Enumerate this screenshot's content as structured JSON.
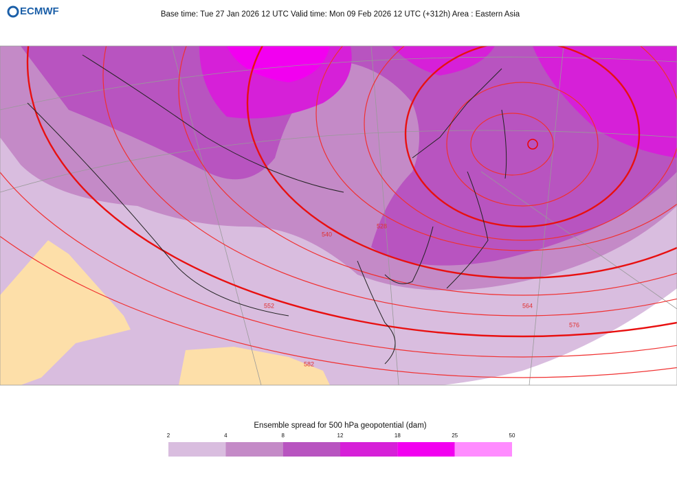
{
  "header": {
    "logo": "ECMWF",
    "title": "Base time: Tue 27 Jan 2026 12 UTC Valid time: Mon 09 Feb 2026 12 UTC (+312h) Area : Eastern Asia"
  },
  "map": {
    "contour_labels": [
      "528",
      "540",
      "552",
      "564",
      "576",
      "582"
    ]
  },
  "colorbar": {
    "title": "Ensemble spread for 500 hPa geopotential (dam)",
    "ticks": [
      2,
      4,
      8,
      12,
      18,
      25,
      50
    ],
    "colors": [
      "#d9bddf",
      "#c48ac7",
      "#b854c0",
      "#d620d8",
      "#f200f0",
      "#ff8cff"
    ]
  }
}
